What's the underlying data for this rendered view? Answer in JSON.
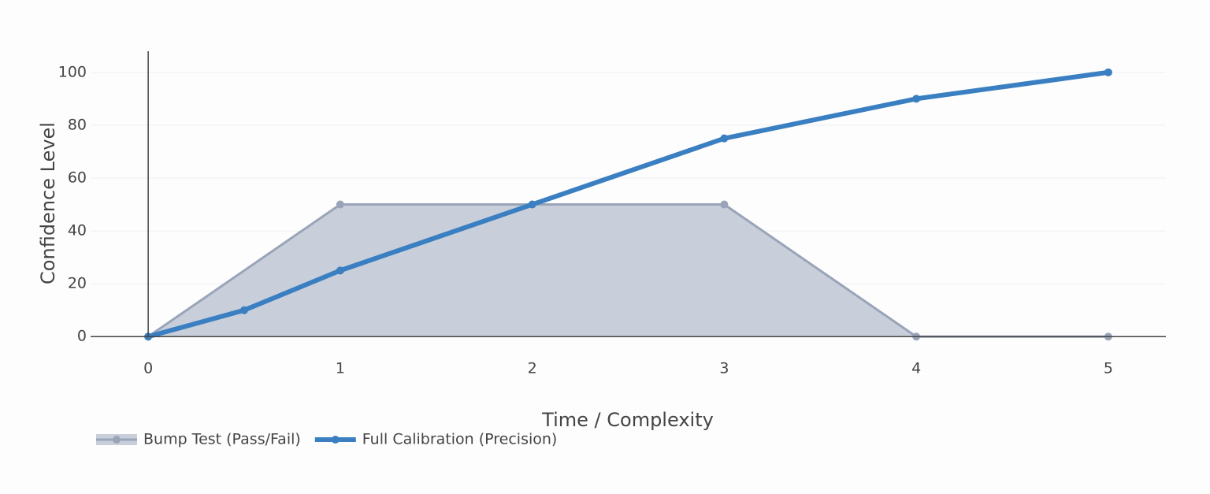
{
  "chart_data": {
    "type": "line",
    "xlabel": "Time / Complexity",
    "ylabel": "Confidence Level",
    "xlim": [
      -0.3,
      5.3
    ],
    "xticks": [
      0,
      1,
      2,
      3,
      4,
      5
    ],
    "ylim": [
      -5,
      108
    ],
    "yticks": [
      0,
      20,
      40,
      60,
      80,
      100
    ],
    "ygrid": true,
    "zerolines": true,
    "legend": "bottom-left",
    "series": [
      {
        "name": "Bump Test (Pass/Fail)",
        "color": "#99a4b9",
        "fill": true,
        "fill_color": "#c9cfda",
        "line_width": 3,
        "x": [
          0,
          1,
          3,
          4,
          5
        ],
        "values": [
          0,
          50,
          50,
          0,
          0
        ]
      },
      {
        "name": "Full Calibration (Precision)",
        "color": "#3a7fc1",
        "fill": false,
        "line_width": 6,
        "x": [
          0,
          0.5,
          1,
          2,
          3,
          4,
          5
        ],
        "values": [
          0,
          10,
          25,
          50,
          75,
          90,
          100
        ]
      }
    ]
  }
}
